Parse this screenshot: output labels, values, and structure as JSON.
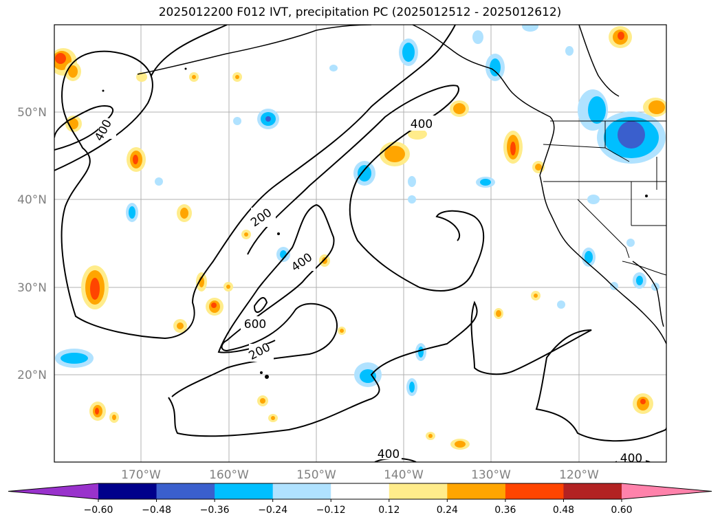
{
  "title": "2025012200 F012 IVT, precipitation PC (2025012512 - 2025012612)",
  "map": {
    "lat_labels": [
      "50°N",
      "40°N",
      "30°N",
      "20°N"
    ],
    "lon_labels": [
      "170°W",
      "160°W",
      "150°W",
      "140°W",
      "130°W",
      "120°W"
    ],
    "contour_labels": [
      "400",
      "200",
      "400",
      "600",
      "200",
      "400",
      "400",
      "400"
    ]
  },
  "colorbar": {
    "colors": [
      "#9932cc",
      "#00008b",
      "#3a5fcd",
      "#00bfff",
      "#b0e2ff",
      "#ffffff",
      "#ffec8b",
      "#ffa500",
      "#ff4500",
      "#b22222",
      "#ff82ab",
      "#ff82ab"
    ],
    "tick_labels": [
      "−0.60",
      "−0.48",
      "−0.36",
      "−0.24",
      "−0.12",
      "0.12",
      "0.24",
      "0.36",
      "0.48",
      "0.60"
    ]
  },
  "chart_data": {
    "type": "map",
    "fields": [
      "IVT contours",
      "precipitation PC shading"
    ],
    "ivt_contour_levels": [
      200,
      400,
      600
    ],
    "pc_levels": [
      -0.6,
      -0.48,
      -0.36,
      -0.24,
      -0.12,
      0.12,
      0.24,
      0.36,
      0.48,
      0.6
    ],
    "extent": {
      "lon": [
        -180,
        -110
      ],
      "lat": [
        10,
        60
      ]
    }
  }
}
